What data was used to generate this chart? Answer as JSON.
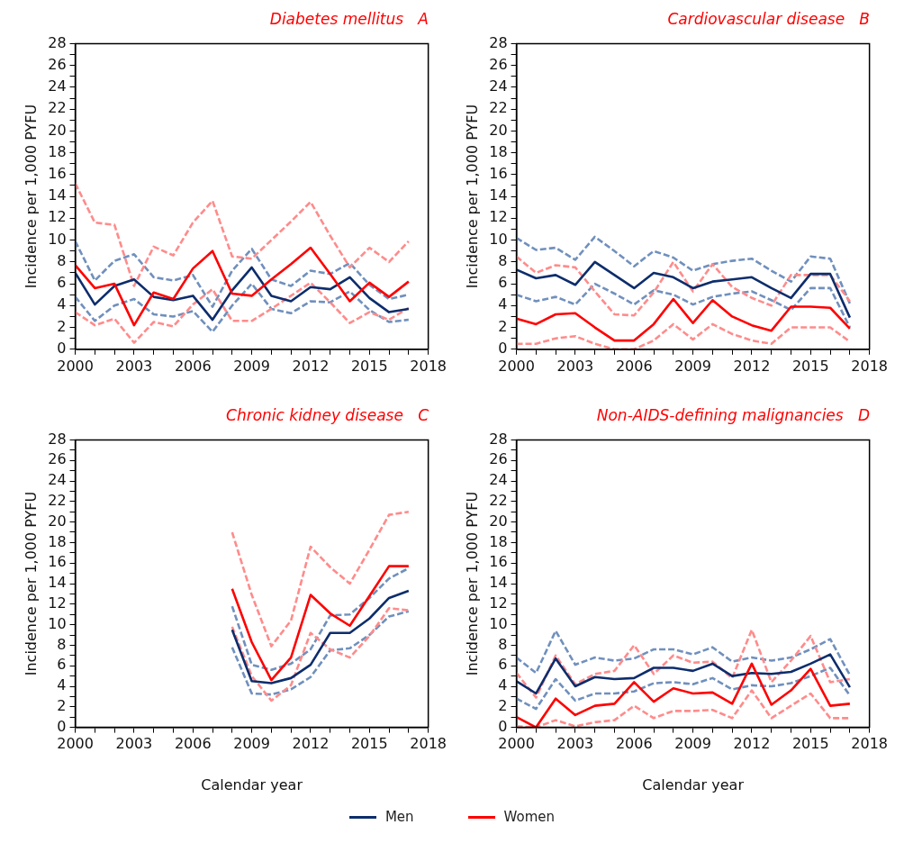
{
  "chart_data": [
    {
      "type": "line",
      "title": "Diabetes mellitus   A",
      "ylabel": "Incidence per 1,000 PYFU",
      "x": [
        2000,
        2001,
        2002,
        2003,
        2004,
        2005,
        2006,
        2007,
        2008,
        2009,
        2010,
        2011,
        2012,
        2013,
        2014,
        2015,
        2016,
        2017
      ],
      "xlim": [
        2000,
        2018
      ],
      "xticks": [
        2000,
        {
          "value": 2001,
          "label": null
        },
        {
          "value": 2002,
          "label": null
        },
        2003,
        {
          "value": 2004,
          "label": null
        },
        {
          "value": 2005,
          "label": null
        },
        2006,
        {
          "value": 2007,
          "label": null
        },
        {
          "value": 2008,
          "label": null
        },
        2009,
        {
          "value": 2010,
          "label": null
        },
        {
          "value": 2011,
          "label": null
        },
        2012,
        {
          "value": 2013,
          "label": null
        },
        {
          "value": 2014,
          "label": null
        },
        2015,
        {
          "value": 2016,
          "label": null
        },
        {
          "value": 2017,
          "label": null
        },
        2018
      ],
      "ylim": [
        0,
        28
      ],
      "yticks": [
        0,
        {
          "value": 1,
          "label": null
        },
        2,
        {
          "value": 3,
          "label": null
        },
        4,
        {
          "value": 5,
          "label": null
        },
        6,
        {
          "value": 7,
          "label": null
        },
        8,
        {
          "value": 9,
          "label": null
        },
        10,
        {
          "value": 11,
          "label": null
        },
        12,
        {
          "value": 13,
          "label": null
        },
        14,
        {
          "value": 15,
          "label": null
        },
        16,
        {
          "value": 17,
          "label": null
        },
        18,
        {
          "value": 19,
          "label": null
        },
        20,
        {
          "value": 21,
          "label": null
        },
        22,
        {
          "value": 23,
          "label": null
        },
        24,
        {
          "value": 25,
          "label": null
        },
        26,
        {
          "value": 27,
          "label": null
        },
        28
      ],
      "grid": false,
      "marker": "none",
      "legend": "bottom",
      "series": [
        {
          "color": "#7090bd",
          "line_style": "dashed",
          "values": [
            9.9,
            6.3,
            8.1,
            8.7,
            6.6,
            6.3,
            6.8,
            3.9,
            7.2,
            9.2,
            6.4,
            5.8,
            7.2,
            6.9,
            7.9,
            5.9,
            4.6,
            5.0
          ]
        },
        {
          "color": "#7090bd",
          "line_style": "dashed",
          "values": [
            4.8,
            2.6,
            4.0,
            4.6,
            3.2,
            3.0,
            3.5,
            1.6,
            4.0,
            6.0,
            3.7,
            3.3,
            4.4,
            4.3,
            5.3,
            3.6,
            2.5,
            2.7
          ]
        },
        {
          "color": "#ff8b8b",
          "line_style": "dashed",
          "values": [
            15.2,
            11.6,
            11.4,
            5.8,
            9.4,
            8.6,
            11.6,
            13.6,
            8.5,
            8.3,
            10.0,
            11.7,
            13.5,
            10.4,
            7.5,
            9.3,
            8.0,
            9.9
          ]
        },
        {
          "color": "#ff8b8b",
          "line_style": "dashed",
          "values": [
            3.4,
            2.2,
            2.8,
            0.6,
            2.5,
            2.1,
            4.1,
            5.5,
            2.6,
            2.6,
            3.7,
            4.9,
            6.1,
            4.3,
            2.4,
            3.4,
            2.7,
            3.8
          ]
        },
        {
          "name": "Men",
          "color": "#0d2d6c",
          "line_style": "solid",
          "values": [
            7.0,
            4.1,
            5.8,
            6.4,
            4.8,
            4.5,
            4.9,
            2.7,
            5.4,
            7.5,
            4.9,
            4.4,
            5.7,
            5.5,
            6.6,
            4.7,
            3.4,
            3.7
          ]
        },
        {
          "name": "Women",
          "color": "#ff0000",
          "line_style": "solid",
          "values": [
            7.7,
            5.6,
            6.0,
            2.2,
            5.2,
            4.6,
            7.4,
            9.0,
            5.1,
            4.9,
            6.4,
            7.8,
            9.3,
            6.9,
            4.4,
            6.1,
            4.8,
            6.2
          ]
        }
      ]
    },
    {
      "type": "line",
      "title": "Cardiovascular disease   B",
      "ylabel": "Incidence per 1,000 PYFU",
      "x": [
        2000,
        2001,
        2002,
        2003,
        2004,
        2005,
        2006,
        2007,
        2008,
        2009,
        2010,
        2011,
        2012,
        2013,
        2014,
        2015,
        2016,
        2017
      ],
      "xlim": [
        2000,
        2018
      ],
      "xticks": [
        2000,
        {
          "value": 2001,
          "label": null
        },
        {
          "value": 2002,
          "label": null
        },
        2003,
        {
          "value": 2004,
          "label": null
        },
        {
          "value": 2005,
          "label": null
        },
        2006,
        {
          "value": 2007,
          "label": null
        },
        {
          "value": 2008,
          "label": null
        },
        2009,
        {
          "value": 2010,
          "label": null
        },
        {
          "value": 2011,
          "label": null
        },
        2012,
        {
          "value": 2013,
          "label": null
        },
        {
          "value": 2014,
          "label": null
        },
        2015,
        {
          "value": 2016,
          "label": null
        },
        {
          "value": 2017,
          "label": null
        },
        2018
      ],
      "ylim": [
        0,
        28
      ],
      "yticks": [
        0,
        {
          "value": 1,
          "label": null
        },
        2,
        {
          "value": 3,
          "label": null
        },
        4,
        {
          "value": 5,
          "label": null
        },
        6,
        {
          "value": 7,
          "label": null
        },
        8,
        {
          "value": 9,
          "label": null
        },
        10,
        {
          "value": 11,
          "label": null
        },
        12,
        {
          "value": 13,
          "label": null
        },
        14,
        {
          "value": 15,
          "label": null
        },
        16,
        {
          "value": 17,
          "label": null
        },
        18,
        {
          "value": 19,
          "label": null
        },
        20,
        {
          "value": 21,
          "label": null
        },
        22,
        {
          "value": 23,
          "label": null
        },
        24,
        {
          "value": 25,
          "label": null
        },
        26,
        {
          "value": 27,
          "label": null
        },
        28
      ],
      "grid": false,
      "marker": "none",
      "series": [
        {
          "color": "#7090bd",
          "line_style": "dashed",
          "values": [
            10.2,
            9.1,
            9.3,
            8.2,
            10.3,
            9.0,
            7.6,
            9.0,
            8.4,
            7.2,
            7.8,
            8.1,
            8.3,
            7.2,
            6.2,
            8.5,
            8.3,
            4.2
          ]
        },
        {
          "color": "#7090bd",
          "line_style": "dashed",
          "values": [
            5.0,
            4.4,
            4.8,
            4.1,
            6.0,
            5.1,
            4.1,
            5.4,
            5.0,
            4.1,
            4.8,
            5.1,
            5.3,
            4.5,
            3.6,
            5.6,
            5.6,
            2.0
          ]
        },
        {
          "color": "#ff8b8b",
          "line_style": "dashed",
          "values": [
            8.5,
            7.0,
            7.7,
            7.5,
            5.3,
            3.2,
            3.1,
            5.2,
            8.0,
            5.3,
            7.8,
            5.7,
            4.7,
            4.0,
            6.8,
            6.8,
            6.8,
            4.4
          ]
        },
        {
          "color": "#ff8b8b",
          "line_style": "dashed",
          "values": [
            0.5,
            0.5,
            1.0,
            1.2,
            0.5,
            0.0,
            0.0,
            0.8,
            2.3,
            0.9,
            2.3,
            1.4,
            0.8,
            0.5,
            2.0,
            2.0,
            2.0,
            0.7
          ]
        },
        {
          "color": "#0d2d6c",
          "line_style": "solid",
          "values": [
            7.3,
            6.5,
            6.8,
            5.9,
            8.0,
            6.8,
            5.6,
            7.0,
            6.6,
            5.6,
            6.2,
            6.4,
            6.6,
            5.6,
            4.7,
            6.9,
            6.9,
            2.9
          ]
        },
        {
          "color": "#ff0000",
          "line_style": "solid",
          "values": [
            2.8,
            2.3,
            3.2,
            3.3,
            2.0,
            0.8,
            0.8,
            2.3,
            4.6,
            2.4,
            4.5,
            3.0,
            2.2,
            1.7,
            3.9,
            3.9,
            3.8,
            1.9
          ]
        }
      ]
    },
    {
      "type": "line",
      "title": "Chronic kidney disease   C",
      "xlabel": "Calendar year",
      "ylabel": "Incidence per 1,000 PYFU",
      "x": [
        2008,
        2009,
        2010,
        2011,
        2012,
        2013,
        2014,
        2015,
        2016,
        2017
      ],
      "xlim": [
        2000,
        2018
      ],
      "xticks": [
        2000,
        {
          "value": 2001,
          "label": null
        },
        {
          "value": 2002,
          "label": null
        },
        2003,
        {
          "value": 2004,
          "label": null
        },
        {
          "value": 2005,
          "label": null
        },
        2006,
        {
          "value": 2007,
          "label": null
        },
        {
          "value": 2008,
          "label": null
        },
        2009,
        {
          "value": 2010,
          "label": null
        },
        {
          "value": 2011,
          "label": null
        },
        2012,
        {
          "value": 2013,
          "label": null
        },
        {
          "value": 2014,
          "label": null
        },
        2015,
        {
          "value": 2016,
          "label": null
        },
        {
          "value": 2017,
          "label": null
        },
        2018
      ],
      "ylim": [
        0,
        28
      ],
      "yticks": [
        0,
        {
          "value": 1,
          "label": null
        },
        2,
        {
          "value": 3,
          "label": null
        },
        4,
        {
          "value": 5,
          "label": null
        },
        6,
        {
          "value": 7,
          "label": null
        },
        8,
        {
          "value": 9,
          "label": null
        },
        10,
        {
          "value": 11,
          "label": null
        },
        12,
        {
          "value": 13,
          "label": null
        },
        14,
        {
          "value": 15,
          "label": null
        },
        16,
        {
          "value": 17,
          "label": null
        },
        18,
        {
          "value": 19,
          "label": null
        },
        20,
        {
          "value": 21,
          "label": null
        },
        22,
        {
          "value": 23,
          "label": null
        },
        24,
        {
          "value": 25,
          "label": null
        },
        26,
        {
          "value": 27,
          "label": null
        },
        28
      ],
      "grid": false,
      "marker": "none",
      "series": [
        {
          "color": "#7090bd",
          "line_style": "dashed",
          "values": [
            11.8,
            6.1,
            5.6,
            6.2,
            7.6,
            10.9,
            11.0,
            12.6,
            14.5,
            15.5
          ]
        },
        {
          "color": "#7090bd",
          "line_style": "dashed",
          "values": [
            7.8,
            3.3,
            3.2,
            3.7,
            4.9,
            7.5,
            7.7,
            9.0,
            10.8,
            11.3
          ]
        },
        {
          "color": "#ff8b8b",
          "line_style": "dashed",
          "values": [
            19.0,
            12.9,
            7.9,
            10.4,
            17.6,
            15.6,
            14.0,
            17.3,
            20.7,
            21.0
          ]
        },
        {
          "color": "#ff8b8b",
          "line_style": "dashed",
          "values": [
            9.8,
            5.0,
            2.6,
            4.1,
            9.2,
            7.6,
            6.8,
            8.9,
            11.6,
            11.4
          ]
        },
        {
          "color": "#0d2d6c",
          "line_style": "solid",
          "values": [
            9.5,
            4.5,
            4.3,
            4.8,
            6.1,
            9.2,
            9.2,
            10.6,
            12.6,
            13.3
          ]
        },
        {
          "color": "#ff0000",
          "line_style": "solid",
          "values": [
            13.5,
            8.3,
            4.6,
            6.8,
            12.9,
            11.1,
            9.9,
            12.8,
            15.7,
            15.7
          ]
        }
      ]
    },
    {
      "type": "line",
      "title": "Non-AIDS-defining malignancies   D",
      "xlabel": "Calendar year",
      "ylabel": "Incidence per 1,000 PYFU",
      "x": [
        2000,
        2001,
        2002,
        2003,
        2004,
        2005,
        2006,
        2007,
        2008,
        2009,
        2010,
        2011,
        2012,
        2013,
        2014,
        2015,
        2016,
        2017
      ],
      "xlim": [
        2000,
        2018
      ],
      "xticks": [
        2000,
        {
          "value": 2001,
          "label": null
        },
        {
          "value": 2002,
          "label": null
        },
        2003,
        {
          "value": 2004,
          "label": null
        },
        {
          "value": 2005,
          "label": null
        },
        2006,
        {
          "value": 2007,
          "label": null
        },
        {
          "value": 2008,
          "label": null
        },
        2009,
        {
          "value": 2010,
          "label": null
        },
        {
          "value": 2011,
          "label": null
        },
        2012,
        {
          "value": 2013,
          "label": null
        },
        {
          "value": 2014,
          "label": null
        },
        2015,
        {
          "value": 2016,
          "label": null
        },
        {
          "value": 2017,
          "label": null
        },
        2018
      ],
      "ylim": [
        0,
        28
      ],
      "yticks": [
        0,
        {
          "value": 1,
          "label": null
        },
        2,
        {
          "value": 3,
          "label": null
        },
        4,
        {
          "value": 5,
          "label": null
        },
        6,
        {
          "value": 7,
          "label": null
        },
        8,
        {
          "value": 9,
          "label": null
        },
        10,
        {
          "value": 11,
          "label": null
        },
        12,
        {
          "value": 13,
          "label": null
        },
        14,
        {
          "value": 15,
          "label": null
        },
        16,
        {
          "value": 17,
          "label": null
        },
        18,
        {
          "value": 19,
          "label": null
        },
        20,
        {
          "value": 21,
          "label": null
        },
        22,
        {
          "value": 23,
          "label": null
        },
        24,
        {
          "value": 25,
          "label": null
        },
        26,
        {
          "value": 27,
          "label": null
        },
        28
      ],
      "grid": false,
      "marker": "none",
      "series": [
        {
          "color": "#7090bd",
          "line_style": "dashed",
          "values": [
            6.8,
            5.3,
            9.4,
            6.1,
            6.8,
            6.5,
            6.7,
            7.6,
            7.6,
            7.1,
            7.8,
            6.4,
            6.8,
            6.5,
            6.8,
            7.6,
            8.6,
            5.1
          ]
        },
        {
          "color": "#7090bd",
          "line_style": "dashed",
          "values": [
            2.8,
            1.8,
            4.7,
            2.6,
            3.3,
            3.3,
            3.5,
            4.3,
            4.4,
            4.2,
            4.8,
            3.7,
            4.1,
            4.0,
            4.3,
            5.0,
            5.8,
            3.1
          ]
        },
        {
          "color": "#ff8b8b",
          "line_style": "dashed",
          "values": [
            5.3,
            2.9,
            7.0,
            4.2,
            5.2,
            5.5,
            8.0,
            5.2,
            7.0,
            6.3,
            6.4,
            4.8,
            9.5,
            4.4,
            6.5,
            8.9,
            4.4,
            4.7
          ]
        },
        {
          "color": "#ff8b8b",
          "line_style": "dashed",
          "values": [
            0.1,
            0.0,
            0.7,
            0.1,
            0.5,
            0.7,
            2.1,
            0.9,
            1.6,
            1.6,
            1.7,
            0.9,
            3.6,
            0.9,
            2.1,
            3.3,
            0.9,
            0.9
          ]
        },
        {
          "color": "#0d2d6c",
          "line_style": "solid",
          "values": [
            4.5,
            3.3,
            6.7,
            4.0,
            4.9,
            4.7,
            4.8,
            5.8,
            5.8,
            5.5,
            6.2,
            5.0,
            5.3,
            5.2,
            5.4,
            6.2,
            7.1,
            3.9
          ]
        },
        {
          "color": "#ff0000",
          "line_style": "solid",
          "values": [
            1.0,
            0.0,
            2.8,
            1.2,
            2.1,
            2.3,
            4.4,
            2.5,
            3.8,
            3.3,
            3.4,
            2.3,
            6.2,
            2.2,
            3.6,
            5.7,
            2.1,
            2.3
          ]
        }
      ]
    }
  ]
}
